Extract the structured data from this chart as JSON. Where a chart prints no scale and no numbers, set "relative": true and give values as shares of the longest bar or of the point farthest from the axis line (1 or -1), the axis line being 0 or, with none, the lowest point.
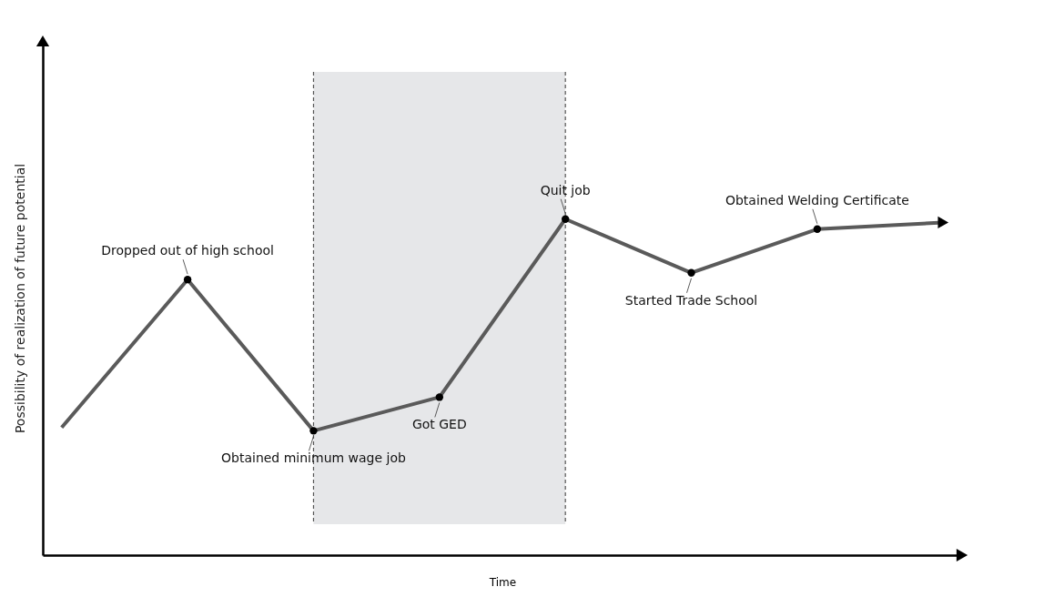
{
  "chart_data": {
    "type": "line",
    "xlabel": "Time",
    "ylabel": "Possibility of realization of future potential",
    "relative": true,
    "tick_labels": false,
    "marker": "circle",
    "categories": [
      null,
      null,
      null,
      null,
      null,
      null,
      null,
      null
    ],
    "series": [
      {
        "color": "#5a5a5a",
        "values": [
          0.38,
          0.82,
          0.37,
          0.47,
          1.0,
          0.84,
          0.97,
          0.99
        ]
      }
    ],
    "annotations": [
      "Dropped out of high school",
      "Obtained minimum wage job",
      "Got GED",
      "Quit job",
      "Started Trade School",
      "Obtained Welding Certificate"
    ]
  }
}
